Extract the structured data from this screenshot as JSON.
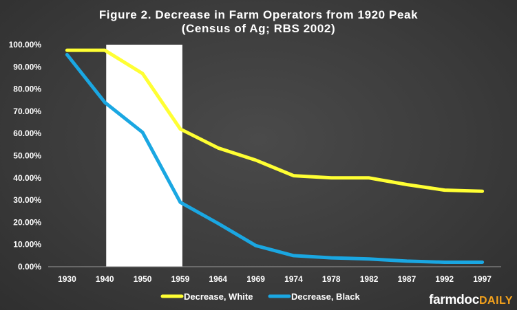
{
  "chart_data": {
    "type": "line",
    "title": "Figure 2. Decrease in Farm Operators from 1920 Peak",
    "subtitle": "(Census of Ag; RBS 2002)",
    "categories": [
      "1930",
      "1940",
      "1950",
      "1959",
      "1964",
      "1969",
      "1974",
      "1978",
      "1982",
      "1987",
      "1992",
      "1997"
    ],
    "series": [
      {
        "name": "Decrease, White",
        "color": "#ffff33",
        "values": [
          97.5,
          97.5,
          87,
          62,
          53.5,
          48,
          41,
          40,
          40,
          37,
          34.5,
          34
        ]
      },
      {
        "name": "Decrease, Black",
        "color": "#1aa7e2",
        "values": [
          95.5,
          74,
          60.5,
          29,
          19.5,
          9.5,
          5,
          4,
          3.5,
          2.5,
          2,
          2
        ]
      }
    ],
    "ylim": [
      0,
      100
    ],
    "yticks": [
      "0.00%",
      "10.00%",
      "20.00%",
      "30.00%",
      "40.00%",
      "50.00%",
      "60.00%",
      "70.00%",
      "80.00%",
      "90.00%",
      "100.00%"
    ],
    "highlight_band": {
      "from": "1940",
      "to": "1959",
      "color": "#ffffff"
    },
    "grid": false,
    "legend_position": "bottom"
  },
  "logo": {
    "main": "farmdoc",
    "accent": "DAILY"
  }
}
